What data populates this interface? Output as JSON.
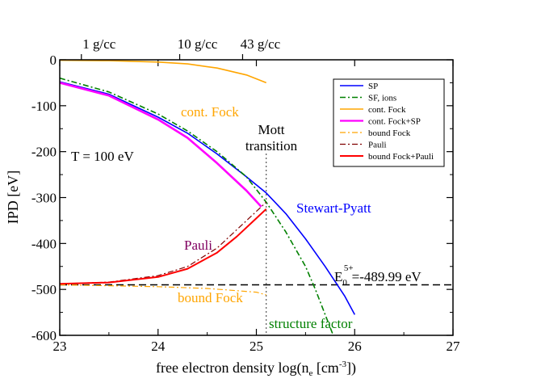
{
  "chart_data": {
    "type": "line",
    "xlabel": "free electron density log(n",
    "xlabel_sub": "e",
    "xlabel_unit": " [cm",
    "xlabel_sup": "-3",
    "xlabel_end": "])",
    "ylabel": "IPD [eV]",
    "xlim": [
      23,
      27
    ],
    "ylim": [
      -600,
      0
    ],
    "xticks": [
      23,
      24,
      25,
      26,
      27
    ],
    "yticks": [
      0,
      -100,
      -200,
      -300,
      -400,
      -500,
      -600
    ],
    "top_axis": {
      "ticks": [
        {
          "x": 23.22,
          "label": "1 g/cc"
        },
        {
          "x": 24.22,
          "label": "10 g/cc"
        },
        {
          "x": 24.86,
          "label": "43 g/cc"
        }
      ]
    },
    "legend_position": "top-right",
    "series": [
      {
        "name": "SP",
        "color": "#0000ff",
        "dash": "solid",
        "width": 1.6,
        "x": [
          23.0,
          23.5,
          24.0,
          24.3,
          24.6,
          24.9,
          25.1,
          25.3,
          25.5,
          25.7,
          25.9,
          26.0
        ],
        "y": [
          -48,
          -75,
          -125,
          -160,
          -205,
          -255,
          -290,
          -335,
          -390,
          -450,
          -515,
          -555
        ]
      },
      {
        "name": "SF, ions",
        "color": "#008000",
        "dash": "dashdot",
        "width": 1.6,
        "x": [
          23.0,
          23.5,
          24.0,
          24.3,
          24.6,
          24.9,
          25.1,
          25.3,
          25.5,
          25.6,
          25.7,
          25.8
        ],
        "y": [
          -40,
          -70,
          -118,
          -155,
          -200,
          -255,
          -310,
          -375,
          -450,
          -500,
          -555,
          -610
        ]
      },
      {
        "name": "cont. Fock",
        "color": "#ffa500",
        "dash": "solid",
        "width": 1.6,
        "x": [
          23.0,
          23.5,
          24.0,
          24.3,
          24.6,
          24.9,
          25.1
        ],
        "y": [
          -1,
          -2,
          -5,
          -9,
          -18,
          -33,
          -50
        ]
      },
      {
        "name": "cont. Fock+SP",
        "color": "#ff00ff",
        "dash": "solid",
        "width": 2.6,
        "x": [
          23.0,
          23.5,
          24.0,
          24.3,
          24.6,
          24.9,
          25.05
        ],
        "y": [
          -50,
          -78,
          -130,
          -170,
          -225,
          -285,
          -320
        ]
      },
      {
        "name": "bound Fock",
        "color": "#ffa500",
        "dash": "dashdot",
        "width": 1.2,
        "x": [
          23.0,
          23.5,
          24.0,
          24.5,
          25.0,
          25.1
        ],
        "y": [
          -490,
          -492,
          -494,
          -498,
          -506,
          -512
        ]
      },
      {
        "name": "Pauli",
        "color": "#800000",
        "dash": "dashdot",
        "width": 1.2,
        "x": [
          23.0,
          23.5,
          24.0,
          24.3,
          24.6,
          24.8,
          25.0,
          25.1
        ],
        "y": [
          -488,
          -484,
          -470,
          -450,
          -410,
          -370,
          -330,
          -310
        ]
      },
      {
        "name": "bound Fock+Pauli",
        "color": "#ff0000",
        "dash": "solid",
        "width": 2.0,
        "x": [
          23.0,
          23.5,
          24.0,
          24.3,
          24.6,
          24.8,
          25.0,
          25.1
        ],
        "y": [
          -488,
          -485,
          -473,
          -455,
          -420,
          -385,
          -345,
          -325
        ]
      }
    ],
    "reference_line": {
      "y": -489.99,
      "color": "#000000",
      "dash": "dashed"
    },
    "mott_line": {
      "x": 25.1,
      "color": "#555555",
      "dash": "dotted"
    },
    "annotations": {
      "cont_fock": {
        "text": "cont. Fock",
        "color": "#ffa500"
      },
      "mott1": {
        "text": "Mott",
        "color": "#000000"
      },
      "mott2": {
        "text": "transition",
        "color": "#000000"
      },
      "temperature": {
        "text": "T = 100 eV",
        "color": "#000000"
      },
      "stewart_pyatt": {
        "text": "Stewart-Pyatt",
        "color": "#0000ff"
      },
      "pauli": {
        "text": "Pauli",
        "color": "#800060"
      },
      "bound_fock": {
        "text": "bound Fock",
        "color": "#ffa500"
      },
      "structure_factor": {
        "text": "structure factor",
        "color": "#008000"
      },
      "energy_main": "E",
      "energy_sub": "0",
      "energy_sup": "5+",
      "energy_value": "=-489.99 eV"
    }
  }
}
